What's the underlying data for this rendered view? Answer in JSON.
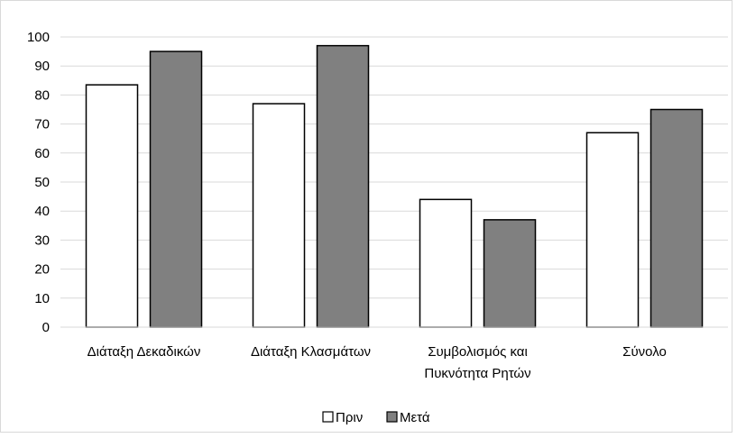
{
  "chart_data": {
    "type": "bar",
    "categories": [
      [
        "Διάταξη Δεκαδικών"
      ],
      [
        "Διάταξη Κλασμάτων"
      ],
      [
        "Συμβολισμός και",
        "Πυκνότητα Ρητών"
      ],
      [
        "Σύνολο"
      ]
    ],
    "series": [
      {
        "name": "Πριν",
        "color": "#ffffff",
        "values": [
          83.5,
          77,
          44,
          67
        ]
      },
      {
        "name": "Μετά",
        "color": "#808080",
        "values": [
          95,
          97,
          37,
          75
        ]
      }
    ],
    "ylim": [
      0,
      100
    ],
    "yticks": [
      "0",
      "10",
      "20",
      "30",
      "40",
      "50",
      "60",
      "70",
      "80",
      "90",
      "100"
    ],
    "grid": true,
    "legend_position": "bottom"
  }
}
